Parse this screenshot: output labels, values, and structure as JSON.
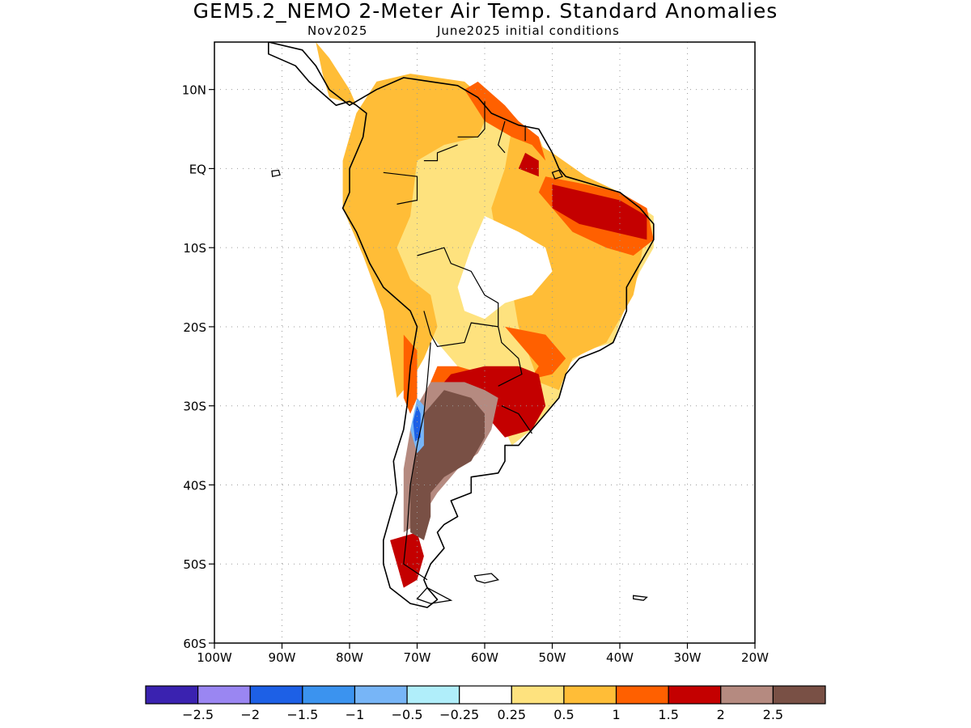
{
  "title": "GEM5.2_NEMO 2-Meter Air Temp. Standard Anomalies",
  "subtitle_left": "Nov2025",
  "subtitle_right": "June2025 initial conditions",
  "map": {
    "lon_range": [
      -100,
      -20
    ],
    "lat_range": [
      -60,
      16
    ],
    "lat_ticks": [
      {
        "value": 10,
        "label": "10N"
      },
      {
        "value": 0,
        "label": "EQ"
      },
      {
        "value": -10,
        "label": "10S"
      },
      {
        "value": -20,
        "label": "20S"
      },
      {
        "value": -30,
        "label": "30S"
      },
      {
        "value": -40,
        "label": "40S"
      },
      {
        "value": -50,
        "label": "50S"
      },
      {
        "value": -60,
        "label": "60S"
      }
    ],
    "lon_ticks": [
      {
        "value": -100,
        "label": "100W"
      },
      {
        "value": -90,
        "label": "90W"
      },
      {
        "value": -80,
        "label": "80W"
      },
      {
        "value": -70,
        "label": "70W"
      },
      {
        "value": -60,
        "label": "60W"
      },
      {
        "value": -50,
        "label": "50W"
      },
      {
        "value": -40,
        "label": "40W"
      },
      {
        "value": -30,
        "label": "30W"
      },
      {
        "value": -20,
        "label": "20W"
      }
    ],
    "grid": "dotted"
  },
  "colorbar": {
    "colors": [
      "#3a22b0",
      "#9a86f2",
      "#1d60e6",
      "#3b93ef",
      "#77b5f7",
      "#b0eefa",
      "#ffffff",
      "#fee27e",
      "#ffbd37",
      "#ff6000",
      "#c40000",
      "#b58a80",
      "#795045"
    ],
    "labels": [
      "-2.5",
      "-2",
      "-1.5",
      "-1",
      "-0.5",
      "-0.25",
      "0.25",
      "0.5",
      "1",
      "1.5",
      "2",
      "2.5"
    ]
  },
  "anomaly_regions": [
    {
      "level": "0.5",
      "color": "#fee27e",
      "polygon": [
        [
          -79,
          2
        ],
        [
          -77,
          7
        ],
        [
          -73,
          10
        ],
        [
          -67,
          11
        ],
        [
          -62,
          10
        ],
        [
          -55,
          6
        ],
        [
          -52,
          4
        ],
        [
          -50,
          0
        ],
        [
          -45,
          -2
        ],
        [
          -40,
          -3
        ],
        [
          -35,
          -6
        ],
        [
          -35,
          -10
        ],
        [
          -37,
          -13
        ],
        [
          -39,
          -17
        ],
        [
          -41,
          -22
        ],
        [
          -45,
          -23
        ],
        [
          -48,
          -25
        ],
        [
          -49,
          -29
        ],
        [
          -53,
          -33
        ],
        [
          -56,
          -35
        ],
        [
          -58,
          -31
        ],
        [
          -62,
          -27
        ],
        [
          -66,
          -23
        ],
        [
          -69,
          -20
        ],
        [
          -71,
          -17
        ],
        [
          -75,
          -15
        ],
        [
          -78,
          -10
        ],
        [
          -80,
          -5
        ],
        [
          -81,
          -2
        ]
      ]
    },
    {
      "level": "1",
      "color": "#ffbd37",
      "polygon": [
        [
          -79,
          7
        ],
        [
          -76,
          11
        ],
        [
          -71,
          12
        ],
        [
          -63,
          11
        ],
        [
          -59,
          8
        ],
        [
          -61,
          4
        ],
        [
          -66,
          3
        ],
        [
          -70,
          1
        ],
        [
          -71,
          -6
        ],
        [
          -73,
          -10
        ],
        [
          -71,
          -14
        ],
        [
          -68,
          -16
        ],
        [
          -67,
          -20
        ],
        [
          -69,
          -24
        ],
        [
          -71,
          -27
        ],
        [
          -73,
          -29
        ],
        [
          -75,
          -18
        ],
        [
          -78,
          -11
        ],
        [
          -81,
          -5
        ],
        [
          -81,
          1
        ]
      ]
    },
    {
      "level": "1",
      "color": "#ffbd37",
      "polygon": [
        [
          -56,
          5
        ],
        [
          -50,
          2
        ],
        [
          -45,
          -1
        ],
        [
          -40,
          -3
        ],
        [
          -36,
          -7
        ],
        [
          -37,
          -12
        ],
        [
          -38,
          -16
        ],
        [
          -42,
          -22
        ],
        [
          -47,
          -24
        ],
        [
          -49,
          -28
        ],
        [
          -52,
          -27
        ],
        [
          -55,
          -20
        ],
        [
          -56,
          -15
        ],
        [
          -58,
          -10
        ],
        [
          -59,
          -5
        ],
        [
          -57,
          0
        ]
      ]
    },
    {
      "level": "1",
      "color": "#ffbd37",
      "polygon": [
        [
          -85,
          16
        ],
        [
          -84,
          12
        ],
        [
          -83,
          9
        ],
        [
          -79,
          8
        ],
        [
          -80,
          10
        ],
        [
          -83,
          14
        ]
      ]
    },
    {
      "level": "1.5",
      "color": "#ff6000",
      "polygon": [
        [
          -51,
          -1
        ],
        [
          -45,
          -2
        ],
        [
          -40,
          -3
        ],
        [
          -36,
          -5
        ],
        [
          -35,
          -9
        ],
        [
          -38,
          -11
        ],
        [
          -42,
          -10
        ],
        [
          -47,
          -8
        ],
        [
          -50,
          -5
        ],
        [
          -52,
          -3
        ]
      ]
    },
    {
      "level": "1.5",
      "color": "#ff6000",
      "polygon": [
        [
          -57,
          8
        ],
        [
          -55,
          6
        ],
        [
          -52,
          4
        ],
        [
          -51,
          1
        ],
        [
          -53,
          3
        ],
        [
          -56,
          4
        ],
        [
          -60,
          6
        ],
        [
          -63,
          10
        ],
        [
          -61,
          11
        ]
      ]
    },
    {
      "level": "1.5",
      "color": "#ff6000",
      "polygon": [
        [
          -57,
          -20
        ],
        [
          -51,
          -21
        ],
        [
          -48,
          -24
        ],
        [
          -50,
          -26
        ],
        [
          -55,
          -27
        ],
        [
          -60,
          -26
        ],
        [
          -64,
          -25
        ],
        [
          -67,
          -25
        ],
        [
          -68,
          -27
        ],
        [
          -65,
          -30
        ],
        [
          -58,
          -30
        ],
        [
          -55,
          -29
        ],
        [
          -52,
          -25
        ],
        [
          -55,
          -22
        ]
      ]
    },
    {
      "level": "1.5",
      "color": "#ff6000",
      "polygon": [
        [
          -72,
          -21
        ],
        [
          -70,
          -23
        ],
        [
          -70,
          -29
        ],
        [
          -71,
          -31
        ],
        [
          -72,
          -29
        ]
      ]
    },
    {
      "level": "2",
      "color": "#c40000",
      "polygon": [
        [
          -50,
          -2
        ],
        [
          -45,
          -3
        ],
        [
          -40,
          -4
        ],
        [
          -36,
          -6
        ],
        [
          -36,
          -9
        ],
        [
          -41,
          -8
        ],
        [
          -46,
          -7
        ],
        [
          -50,
          -5
        ]
      ]
    },
    {
      "level": "2",
      "color": "#c40000",
      "polygon": [
        [
          -60,
          -25
        ],
        [
          -55,
          -25
        ],
        [
          -52,
          -26
        ],
        [
          -51,
          -30
        ],
        [
          -53,
          -33
        ],
        [
          -57,
          -34
        ],
        [
          -59,
          -32
        ],
        [
          -64,
          -29
        ],
        [
          -67,
          -28
        ],
        [
          -65,
          -26
        ]
      ]
    },
    {
      "level": "2",
      "color": "#c40000",
      "polygon": [
        [
          -74,
          -47
        ],
        [
          -70,
          -46
        ],
        [
          -69,
          -49
        ],
        [
          -70,
          -52
        ],
        [
          -72,
          -53
        ],
        [
          -73,
          -50
        ]
      ]
    },
    {
      "level": "2",
      "color": "#c40000",
      "polygon": [
        [
          -54,
          2
        ],
        [
          -52,
          1
        ],
        [
          -52,
          -1
        ],
        [
          -55,
          0
        ]
      ]
    },
    {
      "level": "2.5",
      "color": "#b58a80",
      "polygon": [
        [
          -68,
          -27
        ],
        [
          -63,
          -27
        ],
        [
          -60,
          -28
        ],
        [
          -58,
          -29
        ],
        [
          -59,
          -33
        ],
        [
          -61,
          -36
        ],
        [
          -64,
          -38
        ],
        [
          -67,
          -41
        ],
        [
          -70,
          -45
        ],
        [
          -72,
          -46
        ],
        [
          -72,
          -38
        ],
        [
          -71,
          -33
        ],
        [
          -70,
          -30
        ]
      ]
    },
    {
      "level": "2.5",
      "color": "#795045",
      "polygon": [
        [
          -66,
          -28
        ],
        [
          -62,
          -29
        ],
        [
          -60,
          -31
        ],
        [
          -60,
          -34
        ],
        [
          -62,
          -37
        ],
        [
          -64,
          -38
        ],
        [
          -66,
          -39
        ],
        [
          -68,
          -41
        ],
        [
          -68,
          -44
        ],
        [
          -69,
          -47
        ],
        [
          -71,
          -46
        ],
        [
          -71,
          -40
        ],
        [
          -70,
          -35
        ],
        [
          -69,
          -31
        ]
      ]
    },
    {
      "level": "-0.25",
      "color": "#ffffff",
      "polygon": [
        [
          -60,
          -6
        ],
        [
          -55,
          -8
        ],
        [
          -51,
          -10
        ],
        [
          -50,
          -13
        ],
        [
          -53,
          -16
        ],
        [
          -57,
          -17
        ],
        [
          -60,
          -19
        ],
        [
          -63,
          -18
        ],
        [
          -64,
          -15
        ],
        [
          -62,
          -10
        ]
      ]
    },
    {
      "level": "-1",
      "color": "#77b5f7",
      "polygon": [
        [
          -70,
          -29
        ],
        [
          -69,
          -30
        ],
        [
          -69,
          -35
        ],
        [
          -70,
          -36
        ],
        [
          -71,
          -33
        ]
      ]
    },
    {
      "level": "-1.5",
      "color": "#1d60e6",
      "polygon": [
        [
          -70,
          -30
        ],
        [
          -69.5,
          -31
        ],
        [
          -69.5,
          -34
        ],
        [
          -70.3,
          -34.5
        ],
        [
          -70.6,
          -32
        ]
      ]
    }
  ],
  "coastline": [
    [
      -92,
      16
    ],
    [
      -87,
      15
    ],
    [
      -85,
      13
    ],
    [
      -83,
      10
    ],
    [
      -80,
      8
    ],
    [
      -78,
      9
    ],
    [
      -76,
      10
    ],
    [
      -72,
      11.5
    ],
    [
      -68,
      11
    ],
    [
      -64,
      10.5
    ],
    [
      -61,
      9
    ],
    [
      -59,
      7
    ],
    [
      -55,
      5.5
    ],
    [
      -52,
      5
    ],
    [
      -50,
      2
    ],
    [
      -49,
      0
    ],
    [
      -48,
      -1
    ],
    [
      -44,
      -2
    ],
    [
      -40,
      -3
    ],
    [
      -37,
      -5
    ],
    [
      -35,
      -7
    ],
    [
      -35,
      -9
    ],
    [
      -37,
      -12
    ],
    [
      -39,
      -15
    ],
    [
      -39,
      -18
    ],
    [
      -41,
      -22
    ],
    [
      -43,
      -23
    ],
    [
      -46,
      -24
    ],
    [
      -48,
      -26
    ],
    [
      -49,
      -29
    ],
    [
      -51,
      -31
    ],
    [
      -53,
      -33
    ],
    [
      -55,
      -35
    ],
    [
      -57,
      -35
    ],
    [
      -57,
      -37
    ],
    [
      -58,
      -38.5
    ],
    [
      -62,
      -39
    ],
    [
      -62,
      -41
    ],
    [
      -65,
      -42
    ],
    [
      -64,
      -44
    ],
    [
      -66,
      -45
    ],
    [
      -67,
      -46
    ],
    [
      -66,
      -48
    ],
    [
      -68,
      -50
    ],
    [
      -69,
      -52
    ],
    [
      -68.5,
      -53
    ],
    [
      -67,
      -54.5
    ],
    [
      -68.5,
      -55.5
    ],
    [
      -71,
      -55
    ],
    [
      -74,
      -53
    ],
    [
      -75,
      -50
    ],
    [
      -75,
      -47
    ],
    [
      -74,
      -44
    ],
    [
      -73,
      -41
    ],
    [
      -73.5,
      -37
    ],
    [
      -72,
      -33
    ],
    [
      -71.5,
      -30
    ],
    [
      -71,
      -25
    ],
    [
      -70,
      -20
    ],
    [
      -71,
      -18
    ],
    [
      -75,
      -15
    ],
    [
      -77,
      -12
    ],
    [
      -79,
      -8
    ],
    [
      -81,
      -5
    ],
    [
      -80,
      -3
    ],
    [
      -80,
      0
    ],
    [
      -79,
      2
    ],
    [
      -78,
      4
    ],
    [
      -77.5,
      7
    ],
    [
      -79,
      8
    ],
    [
      -80,
      8.5
    ],
    [
      -82,
      8
    ],
    [
      -84,
      9.5
    ],
    [
      -86,
      11
    ],
    [
      -88,
      13
    ],
    [
      -92,
      14.5
    ]
  ],
  "borders": [
    [
      [
        -75,
        -0.5
      ],
      [
        -70,
        -1
      ],
      [
        -70,
        -4
      ],
      [
        -73,
        -4.5
      ]
    ],
    [
      [
        -69,
        1
      ],
      [
        -67,
        1
      ],
      [
        -67,
        2
      ],
      [
        -64,
        3
      ]
    ],
    [
      [
        -60,
        8.5
      ],
      [
        -60,
        5
      ],
      [
        -61,
        4
      ],
      [
        -64,
        4
      ]
    ],
    [
      [
        -57,
        6
      ],
      [
        -58,
        3
      ],
      [
        -57,
        2
      ]
    ],
    [
      [
        -54,
        5.5
      ],
      [
        -54,
        3.5
      ]
    ],
    [
      [
        -70,
        -11
      ],
      [
        -66,
        -10
      ],
      [
        -65,
        -12
      ],
      [
        -62,
        -13
      ],
      [
        -60,
        -16
      ],
      [
        -58,
        -17
      ],
      [
        -58,
        -20
      ]
    ],
    [
      [
        -69,
        -18
      ],
      [
        -68,
        -21
      ],
      [
        -67,
        -22.5
      ],
      [
        -63,
        -22
      ],
      [
        -62,
        -19.5
      ],
      [
        -58,
        -20
      ]
    ],
    [
      [
        -58,
        -20
      ],
      [
        -57.5,
        -22
      ],
      [
        -55,
        -24
      ],
      [
        -54.5,
        -26
      ],
      [
        -58,
        -27.5
      ]
    ],
    [
      [
        -68,
        -22
      ],
      [
        -68.5,
        -27
      ],
      [
        -69,
        -31
      ],
      [
        -70,
        -35
      ],
      [
        -71,
        -40
      ],
      [
        -71.5,
        -46
      ],
      [
        -72,
        -50
      ],
      [
        -68.5,
        -52
      ]
    ],
    [
      [
        -57.5,
        -30
      ],
      [
        -55,
        -31
      ],
      [
        -53,
        -33.5
      ]
    ]
  ],
  "islands": [
    [
      [
        -91.5,
        -0.3
      ],
      [
        -90.5,
        -0.2
      ],
      [
        -90.3,
        -0.8
      ],
      [
        -91.4,
        -1
      ]
    ],
    [
      [
        -61.5,
        -51.5
      ],
      [
        -59,
        -51.2
      ],
      [
        -58,
        -52
      ],
      [
        -60,
        -52.4
      ],
      [
        -61.2,
        -52.1
      ]
    ],
    [
      [
        -38,
        -54
      ],
      [
        -36,
        -54.2
      ],
      [
        -36.5,
        -54.6
      ],
      [
        -38,
        -54.4
      ]
    ],
    [
      [
        -68.5,
        -53
      ],
      [
        -65,
        -54.6
      ],
      [
        -68,
        -55
      ],
      [
        -70,
        -54.4
      ]
    ],
    [
      [
        -50,
        -0.5
      ],
      [
        -49,
        -0.2
      ],
      [
        -48.5,
        -1
      ],
      [
        -49.6,
        -1.3
      ]
    ]
  ]
}
